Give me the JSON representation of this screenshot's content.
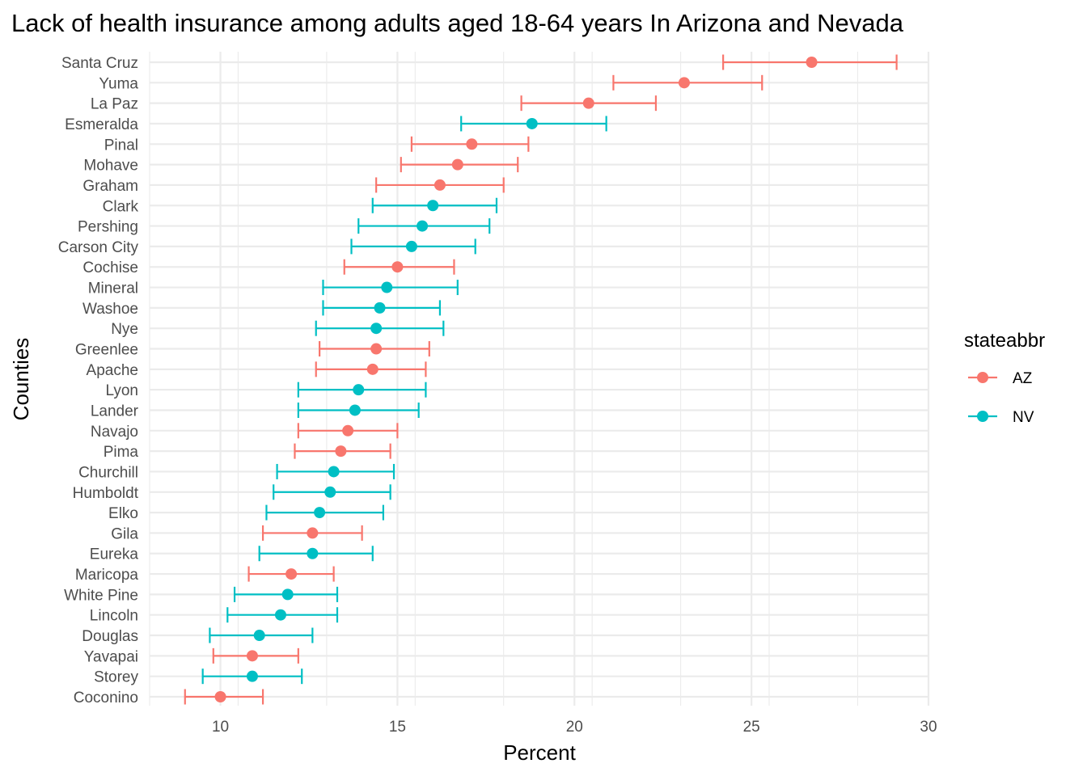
{
  "chart_data": {
    "type": "errorbar-dot",
    "title": "Lack of health insurance among adults aged 18-64 years In Arizona and Nevada",
    "xlabel": "Percent",
    "ylabel": "Counties",
    "xlim": [
      8,
      30
    ],
    "xticks": [
      10,
      15,
      20,
      25,
      30
    ],
    "grid": true,
    "legend": {
      "title": "stateabbr",
      "position": "right",
      "entries": [
        {
          "key": "AZ",
          "label": "AZ",
          "color": "#F8766D"
        },
        {
          "key": "NV",
          "label": "NV",
          "color": "#00BFC4"
        }
      ]
    },
    "points": [
      {
        "county": "Santa Cruz",
        "state": "AZ",
        "value": 26.7,
        "low": 24.2,
        "high": 29.1
      },
      {
        "county": "Yuma",
        "state": "AZ",
        "value": 23.1,
        "low": 21.1,
        "high": 25.3
      },
      {
        "county": "La Paz",
        "state": "AZ",
        "value": 20.4,
        "low": 18.5,
        "high": 22.3
      },
      {
        "county": "Esmeralda",
        "state": "NV",
        "value": 18.8,
        "low": 16.8,
        "high": 20.9
      },
      {
        "county": "Pinal",
        "state": "AZ",
        "value": 17.1,
        "low": 15.4,
        "high": 18.7
      },
      {
        "county": "Mohave",
        "state": "AZ",
        "value": 16.7,
        "low": 15.1,
        "high": 18.4
      },
      {
        "county": "Graham",
        "state": "AZ",
        "value": 16.2,
        "low": 14.4,
        "high": 18.0
      },
      {
        "county": "Clark",
        "state": "NV",
        "value": 16.0,
        "low": 14.3,
        "high": 17.8
      },
      {
        "county": "Pershing",
        "state": "NV",
        "value": 15.7,
        "low": 13.9,
        "high": 17.6
      },
      {
        "county": "Carson City",
        "state": "NV",
        "value": 15.4,
        "low": 13.7,
        "high": 17.2
      },
      {
        "county": "Cochise",
        "state": "AZ",
        "value": 15.0,
        "low": 13.5,
        "high": 16.6
      },
      {
        "county": "Mineral",
        "state": "NV",
        "value": 14.7,
        "low": 12.9,
        "high": 16.7
      },
      {
        "county": "Washoe",
        "state": "NV",
        "value": 14.5,
        "low": 12.9,
        "high": 16.2
      },
      {
        "county": "Nye",
        "state": "NV",
        "value": 14.4,
        "low": 12.7,
        "high": 16.3
      },
      {
        "county": "Greenlee",
        "state": "AZ",
        "value": 14.4,
        "low": 12.8,
        "high": 15.9
      },
      {
        "county": "Apache",
        "state": "AZ",
        "value": 14.3,
        "low": 12.7,
        "high": 15.8
      },
      {
        "county": "Lyon",
        "state": "NV",
        "value": 13.9,
        "low": 12.2,
        "high": 15.8
      },
      {
        "county": "Lander",
        "state": "NV",
        "value": 13.8,
        "low": 12.2,
        "high": 15.6
      },
      {
        "county": "Navajo",
        "state": "AZ",
        "value": 13.6,
        "low": 12.2,
        "high": 15.0
      },
      {
        "county": "Pima",
        "state": "AZ",
        "value": 13.4,
        "low": 12.1,
        "high": 14.8
      },
      {
        "county": "Churchill",
        "state": "NV",
        "value": 13.2,
        "low": 11.6,
        "high": 14.9
      },
      {
        "county": "Humboldt",
        "state": "NV",
        "value": 13.1,
        "low": 11.5,
        "high": 14.8
      },
      {
        "county": "Elko",
        "state": "NV",
        "value": 12.8,
        "low": 11.3,
        "high": 14.6
      },
      {
        "county": "Gila",
        "state": "AZ",
        "value": 12.6,
        "low": 11.2,
        "high": 14.0
      },
      {
        "county": "Eureka",
        "state": "NV",
        "value": 12.6,
        "low": 11.1,
        "high": 14.3
      },
      {
        "county": "Maricopa",
        "state": "AZ",
        "value": 12.0,
        "low": 10.8,
        "high": 13.2
      },
      {
        "county": "White Pine",
        "state": "NV",
        "value": 11.9,
        "low": 10.4,
        "high": 13.3
      },
      {
        "county": "Lincoln",
        "state": "NV",
        "value": 11.7,
        "low": 10.2,
        "high": 13.3
      },
      {
        "county": "Douglas",
        "state": "NV",
        "value": 11.1,
        "low": 9.7,
        "high": 12.6
      },
      {
        "county": "Yavapai",
        "state": "AZ",
        "value": 10.9,
        "low": 9.8,
        "high": 12.2
      },
      {
        "county": "Storey",
        "state": "NV",
        "value": 10.9,
        "low": 9.5,
        "high": 12.3
      },
      {
        "county": "Coconino",
        "state": "AZ",
        "value": 10.0,
        "low": 9.0,
        "high": 11.2
      }
    ]
  }
}
